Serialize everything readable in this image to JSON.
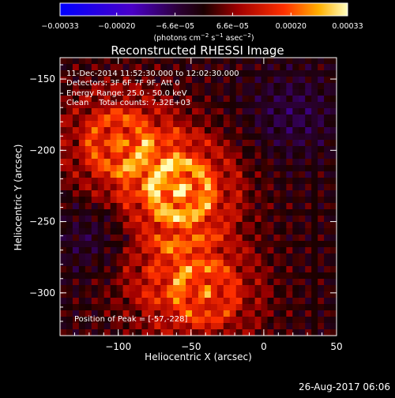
{
  "chart_data": {
    "type": "heatmap",
    "title": "Reconstructed RHESSI Image",
    "xlabel": "Heliocentric X (arcsec)",
    "ylabel": "Heliocentric Y (arcsec)",
    "xlim": [
      -140,
      50
    ],
    "ylim": [
      -330,
      -135
    ],
    "xticks": [
      -100,
      -50,
      0,
      50
    ],
    "xtick_labels": [
      "−100",
      "−50",
      "0",
      "50"
    ],
    "yticks": [
      -150,
      -200,
      -250,
      -300
    ],
    "ytick_labels": [
      "−150",
      "−200",
      "−250",
      "−300"
    ],
    "colorbar": {
      "range": [
        -0.00033,
        0.00033
      ],
      "tick_values": [
        -0.00033,
        -0.0002,
        -6.6e-05,
        6.6e-05,
        0.0002,
        0.00033
      ],
      "tick_labels": [
        "−0.00033",
        "−0.00020",
        "−6.6e−05",
        "6.6e−05",
        "0.00020",
        "0.00033"
      ],
      "label_main": "(photons cm",
      "label_exp1": "−2",
      "label_mid": " s",
      "label_exp2": "−1",
      "label_end": " asec",
      "label_exp3": "−2",
      "label_close": ")"
    },
    "sources": [
      {
        "x": -57,
        "y": -228,
        "peak": 0.00033
      },
      {
        "x": -100,
        "y": -195,
        "peak": 0.00025
      },
      {
        "x": -75,
        "y": -285,
        "peak": 0.00012
      },
      {
        "x": -40,
        "y": -300,
        "peak": 0.00022
      }
    ],
    "grid": false
  },
  "annotations": {
    "time_range": "11-Dec-2014 11:52:30.000 to 12:02:30.000",
    "detectors": "Detectors: 3F 6F 7F 9F, Att 0",
    "energy": "Energy Range: 25.0 - 50.0 keV",
    "clean": "Clean    Total counts: 7.32E+03",
    "peak": "Position of Peak = [-57,-228]"
  },
  "footer": {
    "timestamp": "26-Aug-2017 06:06"
  },
  "colors": {
    "background": "#000000",
    "text": "#ffffff"
  }
}
